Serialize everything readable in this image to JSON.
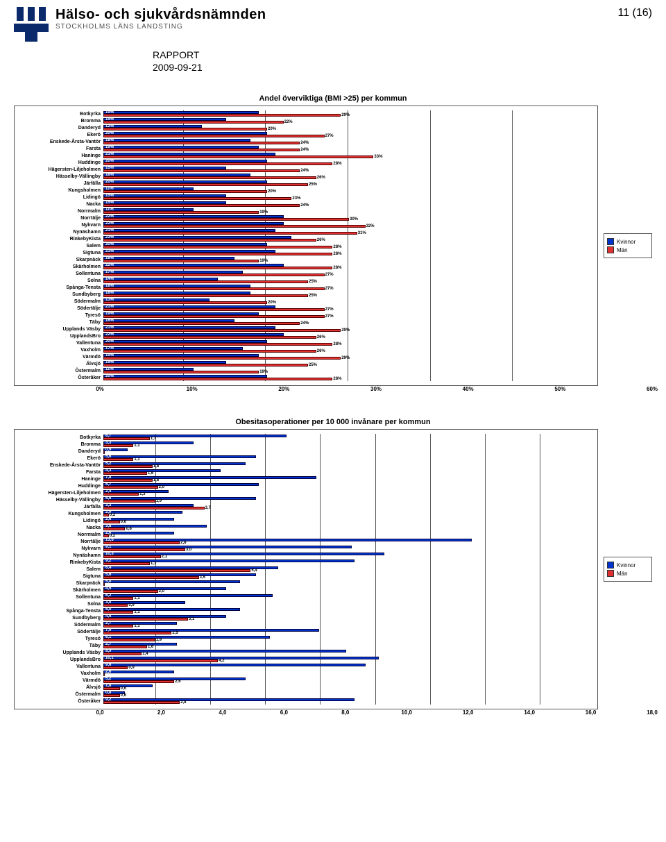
{
  "header": {
    "org_line1": "Hälso- och sjukvårdsnämnden",
    "org_line2": "STOCKHOLMS LÄNS LANDSTING",
    "page_number": "11 (16)",
    "report_label": "RAPPORT",
    "report_date": "2009-09-21"
  },
  "legend": {
    "kvinnor": "Kvinnor",
    "man": "Män"
  },
  "colors": {
    "kvinnor": "#0033cc",
    "man": "#e03030",
    "border": "#555555",
    "background": "#ffffff"
  },
  "chart1": {
    "title": "Andel överviktiga (BMI >25) per kommun",
    "x_max": 60,
    "x_ticks": [
      "0%",
      "10%",
      "20%",
      "30%",
      "40%",
      "50%",
      "60%"
    ],
    "categories": [
      "Botkyrka",
      "Bromma",
      "Danderyd",
      "Ekerö",
      "Enskede-Årsta-Vantör",
      "Farsta",
      "Haninge",
      "Huddinge",
      "Hägersten-Liljeholmen",
      "Hässelby-Vällingby",
      "Järfälla",
      "Kungsholmen",
      "Lidingö",
      "Nacka",
      "Norrmalm",
      "Norrtälje",
      "Nykvarn",
      "Nynäshamn",
      "RinkebyKista",
      "Salem",
      "Sigtuna",
      "Skarpnäck",
      "Skärholmen",
      "Sollentuna",
      "Solna",
      "Spånga-Tensta",
      "Sundbyberg",
      "Södermalm",
      "Södertälje",
      "Tyresö",
      "Täby",
      "Upplands Väsby",
      "UpplandsBro",
      "Vallentuna",
      "Vaxholm",
      "Värmdö",
      "Älvsjö",
      "Östermalm",
      "Österåker"
    ],
    "kvinnor": [
      19,
      15,
      12,
      20,
      18,
      19,
      21,
      20,
      15,
      18,
      20,
      11,
      15,
      15,
      11,
      22,
      22,
      21,
      23,
      20,
      21,
      16,
      22,
      17,
      14,
      18,
      18,
      13,
      21,
      19,
      16,
      21,
      22,
      20,
      17,
      19,
      15,
      11,
      20
    ],
    "man": [
      29,
      22,
      20,
      27,
      24,
      24,
      33,
      28,
      24,
      26,
      25,
      20,
      23,
      24,
      19,
      30,
      32,
      31,
      26,
      28,
      28,
      19,
      28,
      27,
      25,
      27,
      25,
      20,
      27,
      27,
      24,
      29,
      26,
      28,
      26,
      29,
      25,
      19,
      28
    ],
    "label_suffix": "%"
  },
  "chart2": {
    "title": "Obesitasoperationer per 10 000 invånare per kommun",
    "x_max": 18,
    "x_ticks": [
      "0,0",
      "2,0",
      "4,0",
      "6,0",
      "8,0",
      "10,0",
      "12,0",
      "14,0",
      "16,0",
      "18,0"
    ],
    "categories": [
      "Botkyrka",
      "Bromma",
      "Danderyd",
      "Ekerö",
      "Enskede-Årsta-Vantör",
      "Farsta",
      "Haninge",
      "Huddinge",
      "Hägersten-Liljeholmen",
      "Hässelby-Vällingby",
      "Järfälla",
      "Kungsholmen",
      "Lidingö",
      "Nacka",
      "Norrmalm",
      "Norrtälje",
      "Nykvarn",
      "Nynäshamn",
      "RinkebyKista",
      "Salem",
      "Sigtuna",
      "Skarpnäck",
      "Skärholmen",
      "Sollentuna",
      "Solna",
      "Spånga-Tensta",
      "Sundbyberg",
      "Södermalm",
      "Södertälje",
      "Tyresö",
      "Täby",
      "Upplands Väsby",
      "UpplandsBro",
      "Vallentuna",
      "Vaxholm",
      "Värmdö",
      "Älvsjö",
      "Östermalm",
      "Österåker"
    ],
    "kvinnor": [
      6.7,
      3.3,
      0.9,
      5.6,
      5.2,
      4.3,
      7.8,
      5.7,
      2.4,
      5.6,
      3.3,
      2.9,
      2.6,
      3.8,
      2.6,
      13.5,
      9.1,
      10.3,
      9.2,
      6.4,
      5.6,
      5.0,
      4.5,
      6.2,
      3.0,
      5.0,
      4.5,
      2.7,
      7.9,
      6.1,
      2.7,
      8.9,
      10.1,
      9.6,
      2.6,
      5.2,
      1.8,
      0.8,
      9.2
    ],
    "man": [
      1.7,
      1.1,
      0,
      1.1,
      1.8,
      1.6,
      1.8,
      2.0,
      1.3,
      1.9,
      3.7,
      0.2,
      0.6,
      0.8,
      0.2,
      2.8,
      3.0,
      2.1,
      1.7,
      5.4,
      3.5,
      0,
      2.0,
      1.1,
      0.9,
      1.1,
      3.1,
      1.1,
      2.5,
      1.9,
      1.6,
      1.4,
      4.2,
      0.9,
      0,
      2.6,
      0.6,
      0.6,
      2.8
    ],
    "kvinnor_labels": [
      "6,7",
      "3,3",
      "0,9",
      "5,6",
      "5,2",
      "4,3",
      "7,8",
      "5,7",
      "2,4",
      "5,6",
      "3,3",
      "2,9",
      "2,6",
      "3,8",
      "2,6",
      "13,5",
      "9,1",
      "10,3",
      "9,2",
      "6,4",
      "5,6",
      "5,0",
      "4,5",
      "6,2",
      "3,0",
      "5,0",
      "4,5",
      "2,7",
      "7,9",
      "6,1",
      "2,7",
      "8,9",
      "10,1",
      "9,6",
      "2,6",
      "5,2",
      "1,8",
      "0,8",
      "9,2"
    ],
    "man_labels": [
      "1,7",
      "1,1",
      "",
      "1,1",
      "1,8",
      "1,6",
      "1,8",
      "2,0",
      "1,3",
      "1,9",
      "3,7",
      "0,2",
      "0,6",
      "0,8",
      "0,2",
      "2,8",
      "3,0",
      "2,1",
      "1,7",
      "5,4",
      "3,5",
      "",
      "2,0",
      "1,1",
      "0,9",
      "1,1",
      "3,1",
      "1,1",
      "2,5",
      "1,9",
      "1,6",
      "1,4",
      "4,2",
      "0,9",
      "",
      "2,6",
      "0,6",
      "0,6",
      "2,8"
    ]
  }
}
